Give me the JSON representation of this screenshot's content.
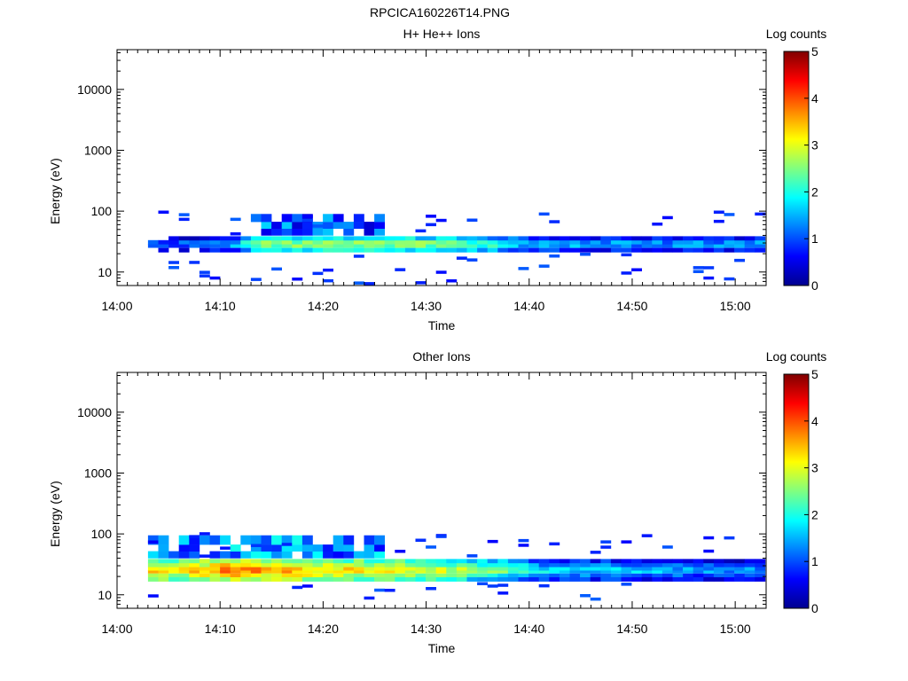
{
  "figure_title": "RPCICA160226T14.PNG",
  "colors": {
    "colormap": [
      "#00008f",
      "#0000ff",
      "#0080ff",
      "#00ffff",
      "#80ff80",
      "#ffff00",
      "#ff8000",
      "#ff0000",
      "#800000"
    ]
  },
  "chart_data": [
    {
      "type": "heatmap",
      "title": "H+ He++ Ions",
      "xlabel": "Time",
      "ylabel": "Energy (eV)",
      "xlim": [
        "14:00",
        "15:03"
      ],
      "ylim": [
        6,
        45000
      ],
      "yscale": "log",
      "x_ticks": [
        "14:00",
        "14:10",
        "14:20",
        "14:30",
        "14:40",
        "14:50",
        "15:00"
      ],
      "y_ticks": [
        "10",
        "100",
        "1000",
        "10000"
      ],
      "colorbar": {
        "label": "Log counts",
        "range": [
          0,
          5
        ],
        "ticks": [
          "0",
          "1",
          "2",
          "3",
          "4",
          "5"
        ]
      },
      "core": {
        "time_range": [
          "14:03",
          "15:03"
        ],
        "energy_bands_eV": [
          23,
          27,
          31,
          36
        ],
        "profile": [
          {
            "time": "14:03",
            "level": 1.1
          },
          {
            "time": "14:08",
            "level": 1.4
          },
          {
            "time": "14:12",
            "level": 1.8
          },
          {
            "time": "14:13",
            "level": 2.7
          },
          {
            "time": "14:20",
            "level": 2.9
          },
          {
            "time": "14:30",
            "level": 2.7
          },
          {
            "time": "14:36",
            "level": 2.4
          },
          {
            "time": "14:40",
            "level": 1.8
          },
          {
            "time": "14:50",
            "level": 1.6
          },
          {
            "time": "15:03",
            "level": 1.6
          }
        ]
      },
      "upper_band": {
        "time_range": [
          "14:13",
          "14:26"
        ],
        "energy_range_eV": [
          40,
          90
        ],
        "level": 1.0
      },
      "scatter": {
        "time_range": [
          "14:03",
          "15:03"
        ],
        "energy_range_eV": [
          6,
          100
        ],
        "level": 0.6
      }
    },
    {
      "type": "heatmap",
      "title": "Other Ions",
      "xlabel": "Time",
      "ylabel": "Energy (eV)",
      "xlim": [
        "14:00",
        "15:03"
      ],
      "ylim": [
        6,
        45000
      ],
      "yscale": "log",
      "x_ticks": [
        "14:00",
        "14:10",
        "14:20",
        "14:30",
        "14:40",
        "14:50",
        "15:00"
      ],
      "y_ticks": [
        "10",
        "100",
        "1000",
        "10000"
      ],
      "colorbar": {
        "label": "Log counts",
        "range": [
          0,
          5
        ],
        "ticks": [
          "0",
          "1",
          "2",
          "3",
          "4",
          "5"
        ]
      },
      "core": {
        "time_range": [
          "14:03",
          "15:03"
        ],
        "energy_bands_eV": [
          18,
          21,
          24,
          27,
          31,
          36
        ],
        "profile": [
          {
            "time": "14:03",
            "level": 3.6
          },
          {
            "time": "14:06",
            "level": 3.3
          },
          {
            "time": "14:11",
            "level": 4.0
          },
          {
            "time": "14:20",
            "level": 3.5
          },
          {
            "time": "14:30",
            "level": 3.2
          },
          {
            "time": "14:38",
            "level": 2.5
          },
          {
            "time": "14:42",
            "level": 1.9
          },
          {
            "time": "14:50",
            "level": 1.8
          },
          {
            "time": "15:03",
            "level": 1.4
          }
        ]
      },
      "upper_band": {
        "time_range": [
          "14:03",
          "14:26"
        ],
        "energy_range_eV": [
          40,
          95
        ],
        "level": 1.3
      },
      "scatter": {
        "time_range": [
          "14:03",
          "15:03"
        ],
        "energy_range_eV": [
          8,
          100
        ],
        "level": 0.6
      }
    }
  ]
}
